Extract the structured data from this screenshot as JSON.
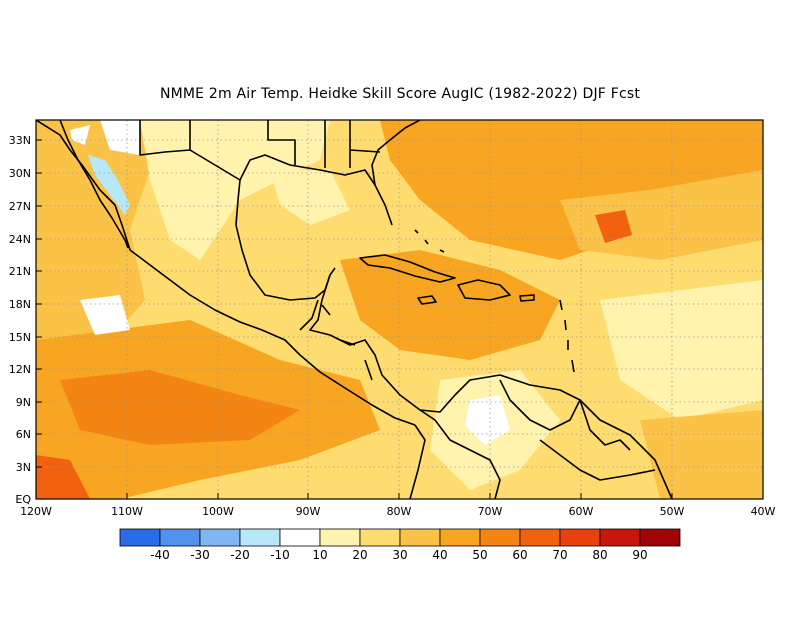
{
  "title": "NMME  2m Air Temp. Heidke Skill Score AugIC (1982-2022) DJF Fcst",
  "map": {
    "lat_labels": [
      "33N",
      "30N",
      "27N",
      "24N",
      "21N",
      "18N",
      "15N",
      "12N",
      "9N",
      "6N",
      "3N",
      "EQ"
    ],
    "lon_labels": [
      "120W",
      "110W",
      "100W",
      "90W",
      "80W",
      "70W",
      "60W",
      "50W",
      "40W"
    ],
    "extent": {
      "lon": [
        -120,
        -40
      ],
      "lat": [
        0,
        35
      ]
    },
    "grid": "dotted"
  },
  "colorbar": {
    "colors": [
      "#2a6be8",
      "#4f93ee",
      "#80b6f3",
      "#b6e8fa",
      "#ffffff",
      "#fff3ad",
      "#fedc6f",
      "#fbc248",
      "#f8a521",
      "#f58512",
      "#f2620e",
      "#e8410d",
      "#c81608",
      "#a00505"
    ],
    "labels": [
      "-40",
      "-30",
      "-20",
      "-10",
      "10",
      "20",
      "30",
      "40",
      "50",
      "60",
      "70",
      "80",
      "90"
    ]
  },
  "legend_colors": {
    "blue_negative": "#80b6f3",
    "orange_high": "#f58512"
  }
}
